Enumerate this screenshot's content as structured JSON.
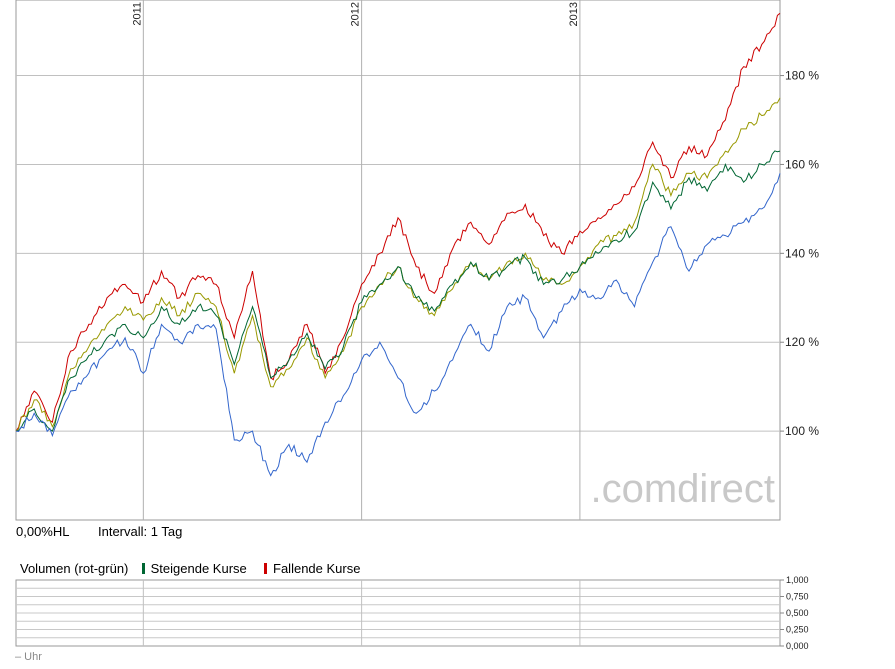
{
  "chart_data": {
    "type": "line",
    "y_unit": "%",
    "ylim": [
      80,
      197
    ],
    "y_ticks": [
      "100 %",
      "120 %",
      "140 %",
      "160 %",
      "180 %"
    ],
    "y_tick_values": [
      100,
      120,
      140,
      160,
      180
    ],
    "x_range": [
      "2010-06",
      "2013-12"
    ],
    "x_ticks": [
      "2011",
      "2012",
      "2013"
    ],
    "grid": true,
    "series": [
      {
        "color": "#cc0000",
        "x": [
          "2010-06",
          "2010-07",
          "2010-08",
          "2010-09",
          "2010-10",
          "2010-11",
          "2010-12",
          "2011-01",
          "2011-02",
          "2011-03",
          "2011-04",
          "2011-05",
          "2011-06",
          "2011-07",
          "2011-08",
          "2011-09",
          "2011-10",
          "2011-11",
          "2011-12",
          "2012-01",
          "2012-02",
          "2012-03",
          "2012-04",
          "2012-05",
          "2012-06",
          "2012-07",
          "2012-08",
          "2012-09",
          "2012-10",
          "2012-11",
          "2012-12",
          "2013-01",
          "2013-02",
          "2013-03",
          "2013-04",
          "2013-05",
          "2013-06",
          "2013-07",
          "2013-08",
          "2013-09",
          "2013-10",
          "2013-11",
          "2013-12"
        ],
        "values": [
          100,
          109,
          102,
          118,
          124,
          130,
          133,
          129,
          136,
          130,
          135,
          133,
          121,
          136,
          112,
          116,
          124,
          113,
          121,
          133,
          140,
          148,
          137,
          131,
          141,
          147,
          142,
          149,
          151,
          144,
          140,
          145,
          148,
          151,
          155,
          165,
          157,
          164,
          162,
          170,
          182,
          187,
          194
        ]
      },
      {
        "color": "#999900",
        "x": [
          "2010-06",
          "2010-07",
          "2010-08",
          "2010-09",
          "2010-10",
          "2010-11",
          "2010-12",
          "2011-01",
          "2011-02",
          "2011-03",
          "2011-04",
          "2011-05",
          "2011-06",
          "2011-07",
          "2011-08",
          "2011-09",
          "2011-10",
          "2011-11",
          "2011-12",
          "2012-01",
          "2012-02",
          "2012-03",
          "2012-04",
          "2012-05",
          "2012-06",
          "2012-07",
          "2012-08",
          "2012-09",
          "2012-10",
          "2012-11",
          "2012-12",
          "2013-01",
          "2013-02",
          "2013-03",
          "2013-04",
          "2013-05",
          "2013-06",
          "2013-07",
          "2013-08",
          "2013-09",
          "2013-10",
          "2013-11",
          "2013-12"
        ],
        "values": [
          100,
          107,
          101,
          114,
          119,
          124,
          128,
          125,
          130,
          126,
          131,
          128,
          113,
          126,
          110,
          114,
          121,
          112,
          118,
          128,
          133,
          137,
          130,
          126,
          132,
          138,
          134,
          138,
          140,
          134,
          133,
          137,
          142,
          144,
          147,
          160,
          153,
          158,
          157,
          163,
          168,
          171,
          175
        ]
      },
      {
        "color": "#006633",
        "x": [
          "2010-06",
          "2010-07",
          "2010-08",
          "2010-09",
          "2010-10",
          "2010-11",
          "2010-12",
          "2011-01",
          "2011-02",
          "2011-03",
          "2011-04",
          "2011-05",
          "2011-06",
          "2011-07",
          "2011-08",
          "2011-09",
          "2011-10",
          "2011-11",
          "2011-12",
          "2012-01",
          "2012-02",
          "2012-03",
          "2012-04",
          "2012-05",
          "2012-06",
          "2012-07",
          "2012-08",
          "2012-09",
          "2012-10",
          "2012-11",
          "2012-12",
          "2013-01",
          "2013-02",
          "2013-03",
          "2013-04",
          "2013-05",
          "2013-06",
          "2013-07",
          "2013-08",
          "2013-09",
          "2013-10",
          "2013-11",
          "2013-12"
        ],
        "values": [
          100,
          105,
          100,
          112,
          117,
          121,
          124,
          121,
          128,
          124,
          128,
          126,
          115,
          128,
          112,
          116,
          122,
          114,
          119,
          129,
          133,
          137,
          130,
          127,
          133,
          138,
          134,
          137,
          139,
          133,
          134,
          137,
          140,
          143,
          145,
          156,
          150,
          157,
          154,
          160,
          156,
          160,
          163
        ]
      },
      {
        "color": "#3366cc",
        "x": [
          "2010-06",
          "2010-07",
          "2010-08",
          "2010-09",
          "2010-10",
          "2010-11",
          "2010-12",
          "2011-01",
          "2011-02",
          "2011-03",
          "2011-04",
          "2011-05",
          "2011-06",
          "2011-07",
          "2011-08",
          "2011-09",
          "2011-10",
          "2011-11",
          "2011-12",
          "2012-01",
          "2012-02",
          "2012-03",
          "2012-04",
          "2012-05",
          "2012-06",
          "2012-07",
          "2012-08",
          "2012-09",
          "2012-10",
          "2012-11",
          "2012-12",
          "2013-01",
          "2013-02",
          "2013-03",
          "2013-04",
          "2013-05",
          "2013-06",
          "2013-07",
          "2013-08",
          "2013-09",
          "2013-10",
          "2013-11",
          "2013-12"
        ],
        "values": [
          100,
          104,
          99,
          109,
          113,
          118,
          121,
          113,
          124,
          120,
          124,
          123,
          98,
          100,
          90,
          97,
          93,
          102,
          108,
          116,
          120,
          112,
          104,
          109,
          116,
          124,
          118,
          128,
          130,
          121,
          127,
          132,
          130,
          134,
          128,
          138,
          146,
          136,
          142,
          144,
          147,
          150,
          158
        ]
      }
    ]
  },
  "watermark": ".comdirect",
  "info": {
    "scale_mode": "0,00%HL",
    "interval": "Intervall: 1 Tag"
  },
  "volume": {
    "legend_title": "Volumen (rot-grün)",
    "rising_label": "Steigende Kurse",
    "falling_label": "Fallende Kurse",
    "rising_color": "#006633",
    "falling_color": "#cc0000",
    "y_ticks": [
      "1,000",
      "0,750",
      "0,500",
      "0,250",
      "0,000"
    ],
    "x_label": "– Uhr"
  }
}
